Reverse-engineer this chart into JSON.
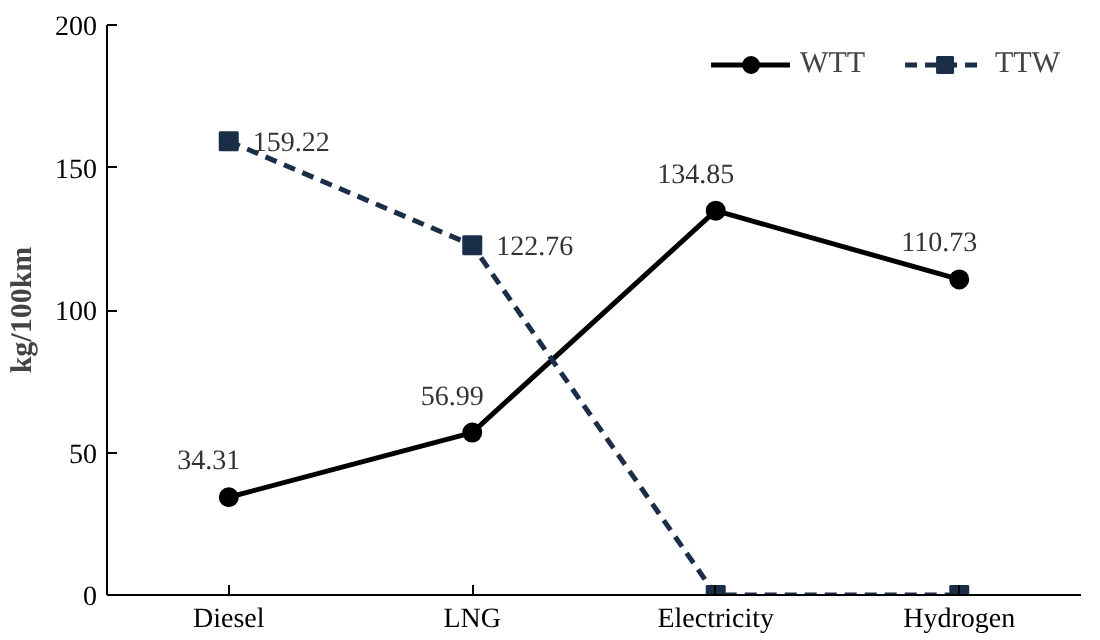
{
  "chart_data": {
    "type": "line",
    "ylabel": "kg/100km",
    "categories": [
      "Diesel",
      "LNG",
      "Electricity",
      "Hydrogen"
    ],
    "series": [
      {
        "name": "WTT",
        "color": "#000000",
        "marker": "circle",
        "line_style": "solid",
        "values": [
          34.31,
          56.99,
          134.85,
          110.73
        ],
        "value_labels": [
          "34.31",
          "56.99",
          "134.85",
          "110.73"
        ]
      },
      {
        "name": "TTW",
        "color": "#1b2e48",
        "marker": "square",
        "line_style": "dashed",
        "values": [
          159.22,
          122.76,
          0,
          0
        ],
        "value_labels": [
          "159.22",
          "122.76",
          null,
          null
        ]
      }
    ],
    "ylim": [
      0,
      200
    ],
    "yticks": [
      0,
      50,
      100,
      150,
      200
    ],
    "grid": false,
    "legend": "top right"
  }
}
